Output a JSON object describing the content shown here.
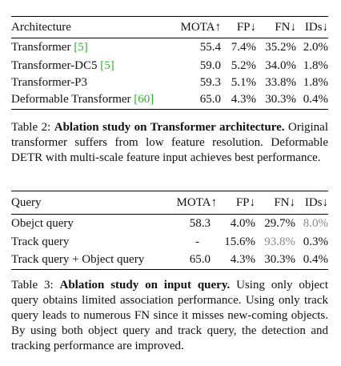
{
  "table2": {
    "headers": [
      "Architecture",
      "MOTA↑",
      "FP↓",
      "FN↓",
      "IDs↓"
    ],
    "rows": [
      {
        "name": "Transformer ",
        "cite_open": "[",
        "cite": "5",
        "cite_close": "]",
        "mota": "55.4",
        "fp": "7.4%",
        "fn": "35.2%",
        "ids": "2.0%"
      },
      {
        "name": "Transformer-DC5 ",
        "cite_open": "[",
        "cite": "5",
        "cite_close": "]",
        "mota": "59.0",
        "fp": "5.2%",
        "fn": "34.0%",
        "ids": "1.8%"
      },
      {
        "name": "Transformer-P3",
        "cite_open": "",
        "cite": "",
        "cite_close": "",
        "mota": "59.3",
        "fp": "5.1%",
        "fn": "33.8%",
        "ids": "1.8%"
      },
      {
        "name": "Deformable Transformer ",
        "cite_open": "[",
        "cite": "60",
        "cite_close": "]",
        "mota": "65.0",
        "fp": "4.3%",
        "fn": "30.3%",
        "ids": "0.4%"
      }
    ],
    "caption_label": "Table 2: ",
    "caption_title": "Ablation study on Transformer architecture.",
    "caption_text": " Original transformer suffers from low feature resolution. Deformable DETR with multi-scale feature input achieves best performance."
  },
  "table3": {
    "headers": [
      "Query",
      "MOTA↑",
      "FP↓",
      "FN↓",
      "IDs↓"
    ],
    "rows": [
      {
        "name": "Obejct query",
        "mota": "58.3",
        "fp": "4.0%",
        "fn": "29.7%",
        "ids": "8.0%"
      },
      {
        "name": "Track query",
        "mota": "-",
        "fp": "15.6%",
        "fn": "93.8%",
        "ids": "0.3%"
      },
      {
        "name": "Track query + Object query",
        "mota": "65.0",
        "fp": "4.3%",
        "fn": "30.3%",
        "ids": "0.4%"
      }
    ],
    "caption_label": "Table 3: ",
    "caption_title": "Ablation study on input query.",
    "caption_text": " Using only object query obtains limited association performance. Using only track query leads to numerous FN since it misses new-coming objects. By using both object query and track query, the detection and tracking performance are improved."
  }
}
